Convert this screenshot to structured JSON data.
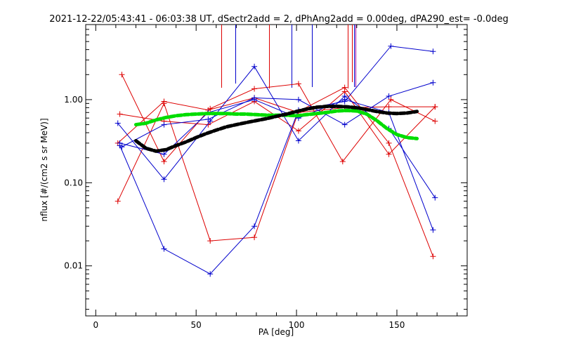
{
  "chart_data": {
    "type": "line",
    "title": "2021-12-22/05:43:41 - 06:03:38 UT, dSectr2add = 2, dPhAng2add = 0.00deg, dPA290_est=  -0.0deg",
    "xlabel": "PA [deg]",
    "ylabel": "nflux [#/(cm2 s sr MeV)]",
    "xlim": [
      -5,
      185
    ],
    "ylim": [
      0.0025,
      8.0
    ],
    "yscale": "log",
    "x_ticks": [
      0,
      50,
      100,
      150
    ],
    "x_tick_labels": [
      "0",
      "50",
      "100",
      "150"
    ],
    "y_ticks": [
      0.01,
      0.1,
      1.0
    ],
    "y_tick_labels": [
      "0.01",
      "0.10",
      "1.00"
    ],
    "grid": false,
    "colors": {
      "red": "#dd0000",
      "blue": "#0000cc",
      "green": "#00dd00",
      "black": "#000000",
      "purple": "#990099"
    },
    "series": [
      {
        "color": "red",
        "marker": "+",
        "x": [
          13,
          34,
          57,
          79,
          101,
          123,
          147,
          169
        ],
        "y": [
          2.0,
          0.18,
          0.78,
          1.35,
          1.55,
          0.18,
          1.0,
          0.55
        ]
      },
      {
        "color": "red",
        "marker": "+",
        "x": [
          11,
          34,
          57,
          79,
          101,
          124,
          146,
          168
        ],
        "y": [
          0.06,
          0.9,
          0.02,
          0.022,
          0.72,
          1.4,
          0.3,
          0.013
        ]
      },
      {
        "color": "red",
        "marker": "+",
        "x": [
          12,
          34,
          56,
          79,
          101,
          124,
          146,
          169
        ],
        "y": [
          0.67,
          0.55,
          0.5,
          0.95,
          0.42,
          1.25,
          0.22,
          0.82
        ]
      },
      {
        "color": "red",
        "marker": "+",
        "x": [
          11,
          34,
          56,
          79,
          101,
          124,
          146,
          169
        ],
        "y": [
          0.3,
          0.95,
          0.75,
          1.05,
          0.7,
          0.8,
          0.82,
          0.82
        ]
      },
      {
        "color": "blue",
        "marker": "+",
        "x": [
          11,
          34,
          57,
          79,
          101,
          124,
          146,
          169
        ],
        "y": [
          0.52,
          0.11,
          0.55,
          2.5,
          0.32,
          1.1,
          0.45,
          0.066
        ]
      },
      {
        "color": "blue",
        "marker": "+",
        "x": [
          12,
          34,
          57,
          79,
          101,
          124,
          147,
          168
        ],
        "y": [
          0.28,
          0.016,
          0.008,
          0.03,
          0.75,
          0.95,
          4.4,
          3.8
        ]
      },
      {
        "color": "blue",
        "marker": "+",
        "x": [
          13,
          34,
          56,
          79,
          101,
          124,
          146,
          168
        ],
        "y": [
          0.27,
          0.5,
          0.58,
          1.05,
          1.0,
          0.5,
          1.1,
          1.6
        ]
      },
      {
        "color": "blue",
        "marker": "+",
        "x": [
          12,
          34,
          56,
          79,
          101,
          124,
          146,
          168
        ],
        "y": [
          0.3,
          0.22,
          0.7,
          1.0,
          0.6,
          1.0,
          0.7,
          0.027
        ]
      },
      {
        "color": "green",
        "style": "thick-dashed",
        "x": [
          20,
          25,
          30,
          35,
          40,
          45,
          50,
          55,
          60,
          65,
          70,
          75,
          80,
          85,
          90,
          95,
          100,
          105,
          110,
          115,
          120,
          125,
          130,
          135,
          140,
          145,
          150,
          155,
          160
        ],
        "y": [
          0.5,
          0.52,
          0.57,
          0.61,
          0.64,
          0.66,
          0.67,
          0.68,
          0.68,
          0.68,
          0.67,
          0.67,
          0.66,
          0.65,
          0.65,
          0.65,
          0.64,
          0.66,
          0.68,
          0.7,
          0.73,
          0.74,
          0.73,
          0.67,
          0.56,
          0.45,
          0.38,
          0.35,
          0.34
        ]
      },
      {
        "color": "black",
        "style": "thick-dashed",
        "x": [
          20,
          25,
          30,
          35,
          40,
          45,
          50,
          55,
          60,
          65,
          70,
          75,
          80,
          85,
          90,
          95,
          100,
          105,
          110,
          115,
          120,
          125,
          130,
          135,
          140,
          145,
          150,
          155,
          160
        ],
        "y": [
          0.32,
          0.26,
          0.24,
          0.25,
          0.28,
          0.31,
          0.35,
          0.39,
          0.43,
          0.47,
          0.5,
          0.53,
          0.56,
          0.59,
          0.63,
          0.67,
          0.72,
          0.77,
          0.81,
          0.83,
          0.83,
          0.82,
          0.8,
          0.76,
          0.72,
          0.69,
          0.68,
          0.69,
          0.72
        ]
      }
    ],
    "vertical_markers": [
      {
        "color": "red",
        "x": 62.5
      },
      {
        "color": "red",
        "x": 86.5
      },
      {
        "color": "red",
        "x": 125.5
      },
      {
        "color": "red",
        "x": 127.5
      },
      {
        "color": "blue",
        "x": 69.5
      },
      {
        "color": "blue",
        "x": 97.5
      },
      {
        "color": "blue",
        "x": 107.5
      },
      {
        "color": "blue",
        "x": 128.5
      },
      {
        "color": "purple",
        "x": 129.5
      }
    ]
  }
}
